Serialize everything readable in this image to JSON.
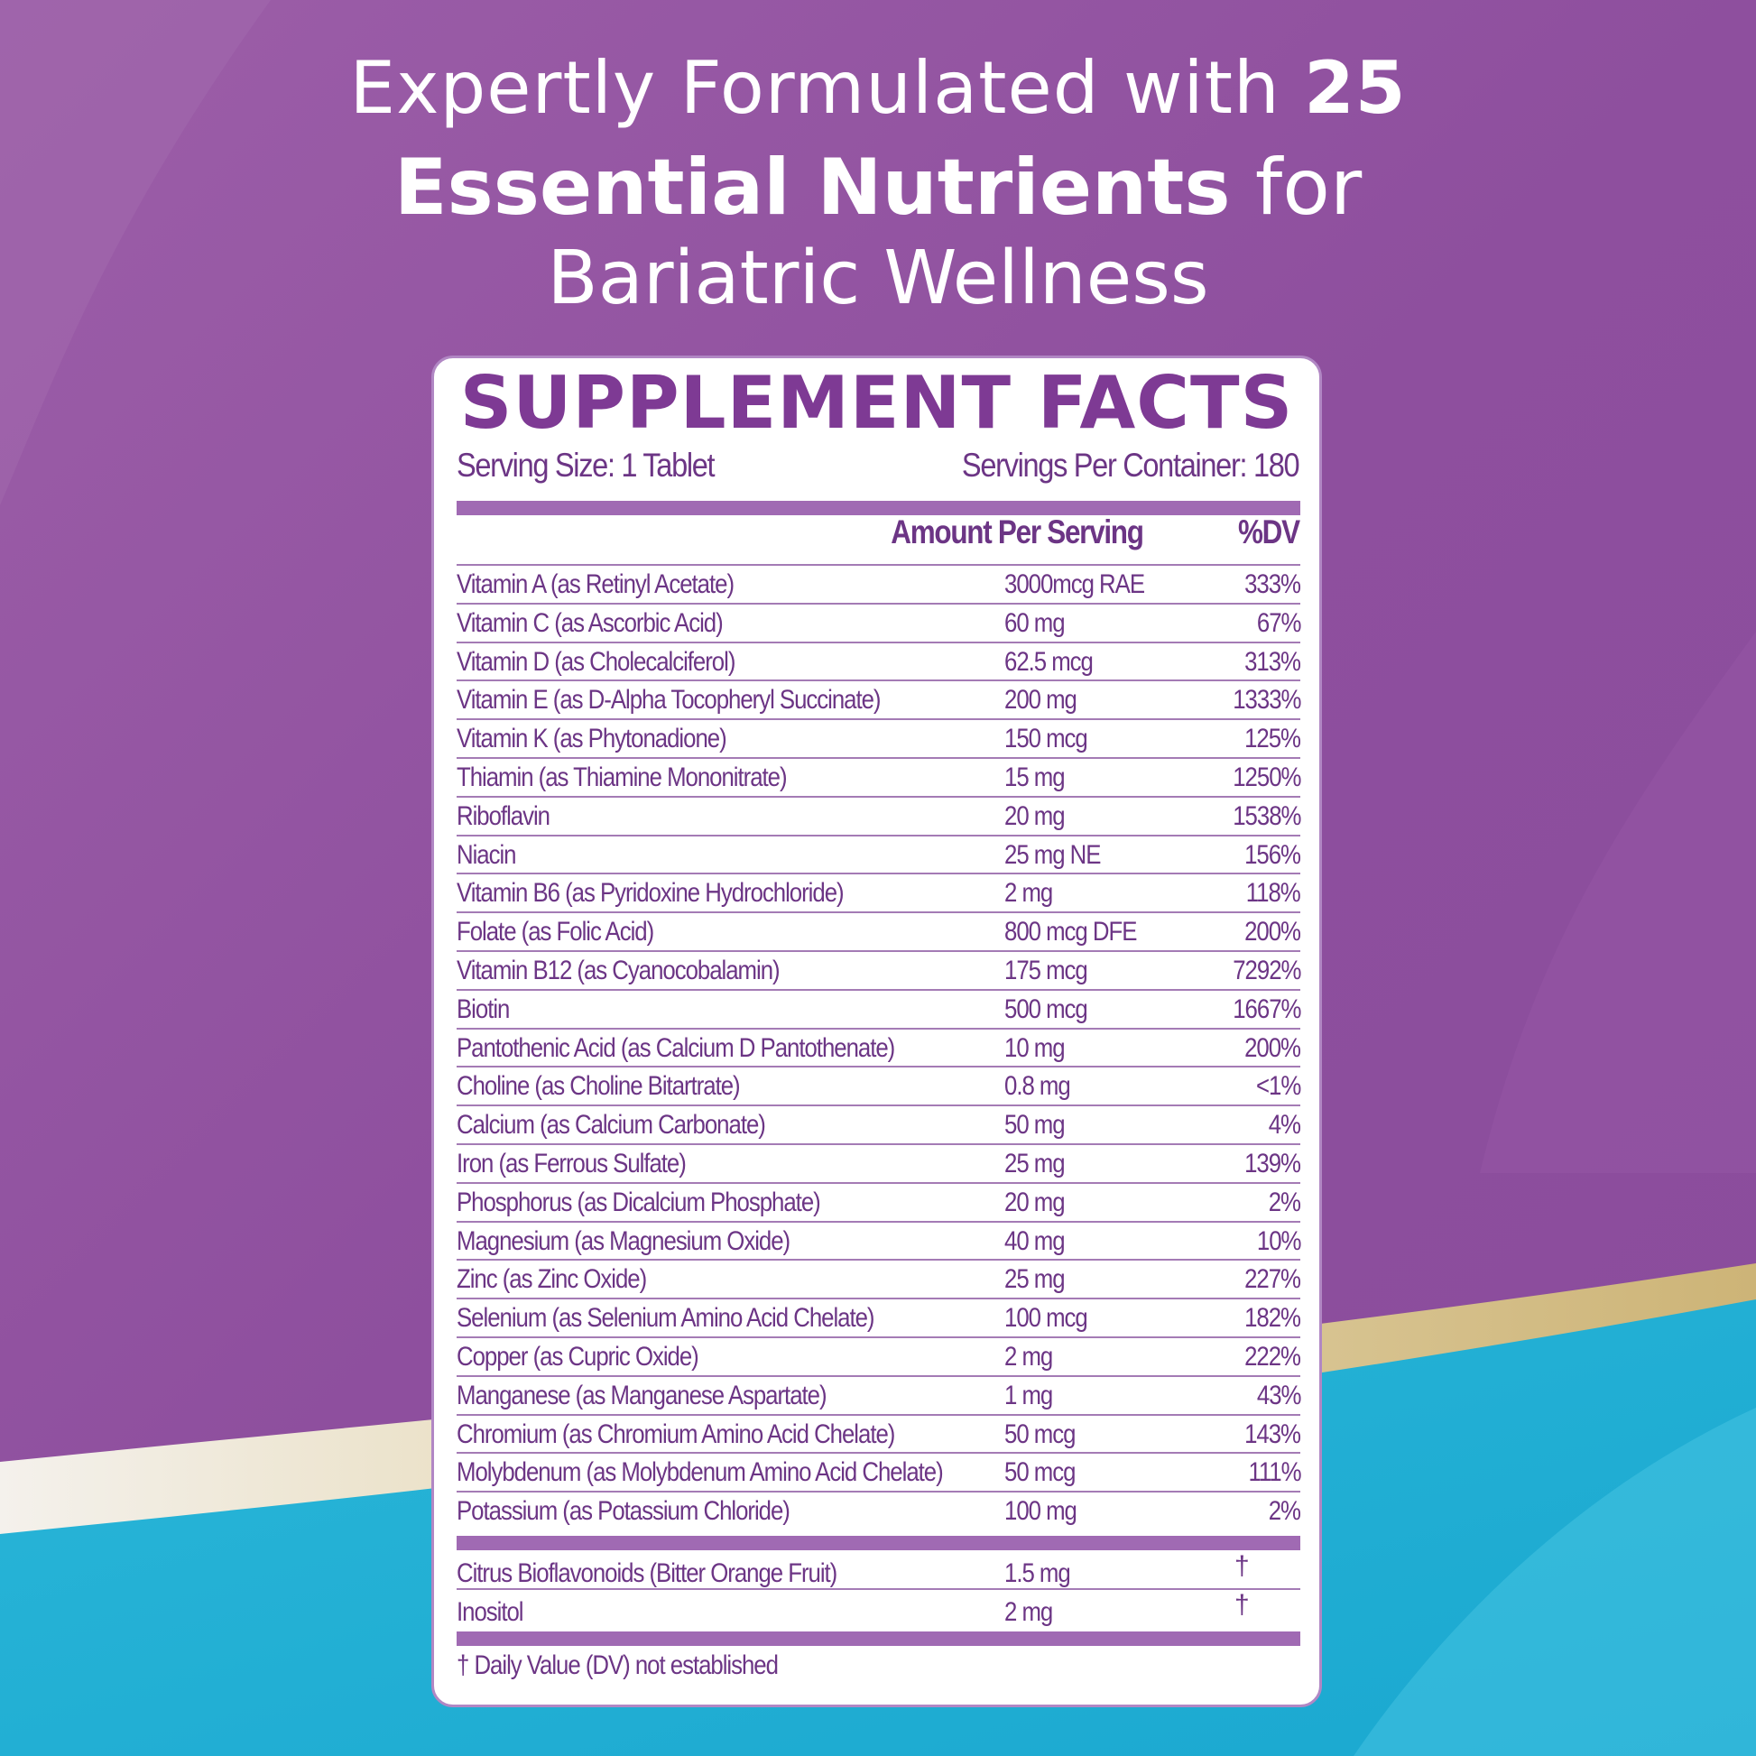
{
  "headline": {
    "line1_prefix": "Expertly Formulated with ",
    "line1_bold": "25",
    "line2_bold": "Essential Nutrients",
    "line2_suffix": " for",
    "line3": "Bariatric Wellness"
  },
  "facts": {
    "title": "SUPPLEMENT FACTS",
    "serving_size": "Serving Size: 1 Tablet",
    "servings_per_container": "Servings Per Container: 180",
    "col_amount": "Amount Per Serving",
    "col_dv": "%DV",
    "nutrients": [
      {
        "name": "Vitamin A (as Retinyl Acetate)",
        "amount": "3000mcg RAE",
        "dv": "333%"
      },
      {
        "name": "Vitamin C (as Ascorbic Acid)",
        "amount": "60 mg",
        "dv": "67%"
      },
      {
        "name": "Vitamin D (as Cholecalciferol)",
        "amount": "62.5 mcg",
        "dv": "313%"
      },
      {
        "name": "Vitamin E (as D-Alpha Tocopheryl Succinate)",
        "amount": "200 mg",
        "dv": "1333%"
      },
      {
        "name": "Vitamin K (as Phytonadione)",
        "amount": "150 mcg",
        "dv": "125%"
      },
      {
        "name": "Thiamin (as Thiamine Mononitrate)",
        "amount": "15 mg",
        "dv": "1250%"
      },
      {
        "name": "Riboflavin",
        "amount": "20 mg",
        "dv": "1538%"
      },
      {
        "name": "Niacin",
        "amount": "25 mg NE",
        "dv": "156%"
      },
      {
        "name": "Vitamin B6 (as Pyridoxine Hydrochloride)",
        "amount": "2 mg",
        "dv": "118%"
      },
      {
        "name": "Folate (as Folic Acid)",
        "amount": "800 mcg DFE",
        "dv": "200%"
      },
      {
        "name": "Vitamin B12 (as Cyanocobalamin)",
        "amount": "175 mcg",
        "dv": "7292%"
      },
      {
        "name": "Biotin",
        "amount": "500 mcg",
        "dv": "1667%"
      },
      {
        "name": "Pantothenic Acid (as Calcium D Pantothenate)",
        "amount": "10 mg",
        "dv": "200%"
      },
      {
        "name": "Choline (as Choline Bitartrate)",
        "amount": "0.8 mg",
        "dv": "<1%"
      },
      {
        "name": "Calcium (as Calcium Carbonate)",
        "amount": "50 mg",
        "dv": "4%"
      },
      {
        "name": "Iron (as Ferrous Sulfate)",
        "amount": "25 mg",
        "dv": "139%"
      },
      {
        "name": "Phosphorus (as Dicalcium Phosphate)",
        "amount": "20 mg",
        "dv": "2%"
      },
      {
        "name": "Magnesium (as Magnesium Oxide)",
        "amount": "40 mg",
        "dv": "10%"
      },
      {
        "name": "Zinc (as Zinc Oxide)",
        "amount": "25 mg",
        "dv": "227%"
      },
      {
        "name": "Selenium (as Selenium Amino Acid Chelate)",
        "amount": "100 mcg",
        "dv": "182%"
      },
      {
        "name": "Copper (as Cupric Oxide)",
        "amount": "2 mg",
        "dv": "222%"
      },
      {
        "name": "Manganese (as Manganese Aspartate)",
        "amount": "1 mg",
        "dv": "43%"
      },
      {
        "name": "Chromium (as Chromium Amino Acid Chelate)",
        "amount": "50 mcg",
        "dv": "143%"
      },
      {
        "name": "Molybdenum (as Molybdenum Amino Acid Chelate)",
        "amount": "50 mcg",
        "dv": "111%"
      },
      {
        "name": "Potassium (as Potassium Chloride)",
        "amount": "100 mg",
        "dv": "2%"
      }
    ],
    "other": [
      {
        "name": "Citrus Bioflavonoids (Bitter Orange Fruit)",
        "amount": "1.5 mg",
        "dv": "†"
      },
      {
        "name": "Inositol",
        "amount": "2 mg",
        "dv": "†"
      }
    ],
    "footnote": "† Daily Value (DV) not established"
  },
  "colors": {
    "purple_bg": "#8f4f9f",
    "purple_text": "#6c3585",
    "title_purple": "#7e3a94",
    "bar_purple": "#a06ab3",
    "cyan": "#22b8da",
    "gold": "#d8c38a"
  }
}
